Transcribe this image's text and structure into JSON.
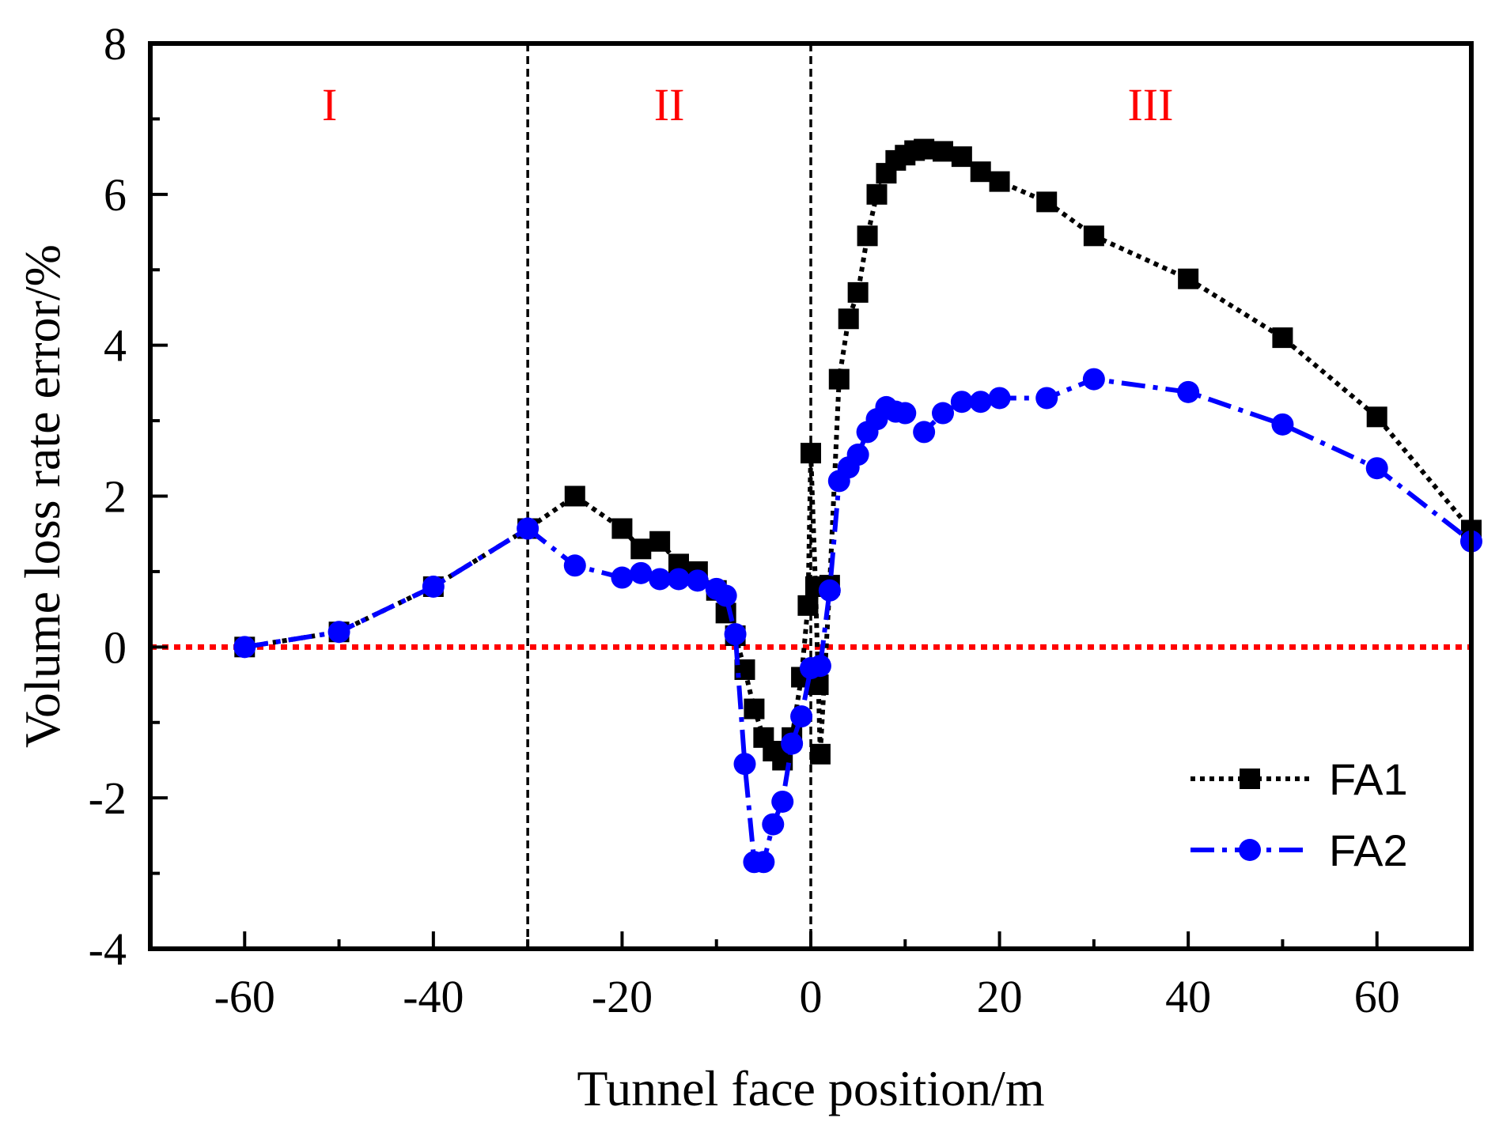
{
  "chart_data": {
    "type": "line",
    "title": "",
    "xlabel": "Tunnel face position/m",
    "ylabel": "Volume loss rate error/%",
    "xlim": [
      -70,
      70
    ],
    "ylim": [
      -4,
      8
    ],
    "xticks": [
      -60,
      -40,
      -20,
      0,
      20,
      40,
      60
    ],
    "yticks": [
      -4,
      -2,
      0,
      2,
      4,
      6,
      8
    ],
    "grid": false,
    "legend_position": "bottom-right",
    "colors": {
      "axis": "#000000",
      "reference": "#ff0000",
      "region": "#ff0000",
      "fa1": "#000000",
      "fa2": "#0000ff"
    },
    "reference_line_y": 0,
    "region_dividers_x": [
      -30,
      0
    ],
    "regions": [
      {
        "label": "I",
        "x": -51
      },
      {
        "label": "II",
        "x": -15
      },
      {
        "label": "III",
        "x": 36
      }
    ],
    "series": [
      {
        "name": "FA1",
        "marker": "square",
        "line_style": "dotted",
        "points": [
          [
            -60,
            0.0
          ],
          [
            -50,
            0.2
          ],
          [
            -40,
            0.8
          ],
          [
            -30,
            1.57
          ],
          [
            -25,
            2.0
          ],
          [
            -20,
            1.57
          ],
          [
            -18,
            1.3
          ],
          [
            -16,
            1.4
          ],
          [
            -14,
            1.1
          ],
          [
            -12,
            1.0
          ],
          [
            -10,
            0.75
          ],
          [
            -9,
            0.45
          ],
          [
            -8,
            0.15
          ],
          [
            -7,
            -0.3
          ],
          [
            -6,
            -0.82
          ],
          [
            -5,
            -1.2
          ],
          [
            -4,
            -1.38
          ],
          [
            -3,
            -1.5
          ],
          [
            -2,
            -1.2
          ],
          [
            -1,
            -0.4
          ],
          [
            -0.3,
            0.55
          ],
          [
            0,
            2.57
          ],
          [
            0.5,
            0.8
          ],
          [
            0.8,
            -0.5
          ],
          [
            1,
            -1.42
          ],
          [
            2,
            0.82
          ],
          [
            3,
            3.55
          ],
          [
            4,
            4.35
          ],
          [
            5,
            4.7
          ],
          [
            6,
            5.45
          ],
          [
            7,
            6.0
          ],
          [
            8,
            6.28
          ],
          [
            9,
            6.45
          ],
          [
            10,
            6.52
          ],
          [
            11,
            6.58
          ],
          [
            12,
            6.6
          ],
          [
            14,
            6.57
          ],
          [
            16,
            6.5
          ],
          [
            18,
            6.3
          ],
          [
            20,
            6.17
          ],
          [
            25,
            5.9
          ],
          [
            30,
            5.45
          ],
          [
            40,
            4.88
          ],
          [
            50,
            4.1
          ],
          [
            60,
            3.05
          ],
          [
            70,
            1.55
          ]
        ]
      },
      {
        "name": "FA2",
        "marker": "circle",
        "line_style": "dash-dot",
        "points": [
          [
            -60,
            0.0
          ],
          [
            -50,
            0.2
          ],
          [
            -40,
            0.8
          ],
          [
            -30,
            1.57
          ],
          [
            -25,
            1.08
          ],
          [
            -20,
            0.92
          ],
          [
            -18,
            0.98
          ],
          [
            -16,
            0.9
          ],
          [
            -14,
            0.9
          ],
          [
            -12,
            0.88
          ],
          [
            -10,
            0.77
          ],
          [
            -9,
            0.68
          ],
          [
            -8,
            0.17
          ],
          [
            -7,
            -1.55
          ],
          [
            -6,
            -2.85
          ],
          [
            -5,
            -2.85
          ],
          [
            -4,
            -2.35
          ],
          [
            -3,
            -2.05
          ],
          [
            -2,
            -1.28
          ],
          [
            -1,
            -0.92
          ],
          [
            0,
            -0.28
          ],
          [
            1,
            -0.25
          ],
          [
            2,
            0.75
          ],
          [
            3,
            2.2
          ],
          [
            4,
            2.38
          ],
          [
            5,
            2.55
          ],
          [
            6,
            2.85
          ],
          [
            7,
            3.02
          ],
          [
            8,
            3.18
          ],
          [
            9,
            3.12
          ],
          [
            10,
            3.1
          ],
          [
            12,
            2.85
          ],
          [
            14,
            3.1
          ],
          [
            16,
            3.25
          ],
          [
            18,
            3.25
          ],
          [
            20,
            3.3
          ],
          [
            25,
            3.3
          ],
          [
            30,
            3.55
          ],
          [
            40,
            3.38
          ],
          [
            50,
            2.95
          ],
          [
            60,
            2.37
          ],
          [
            70,
            1.4
          ]
        ]
      }
    ]
  }
}
